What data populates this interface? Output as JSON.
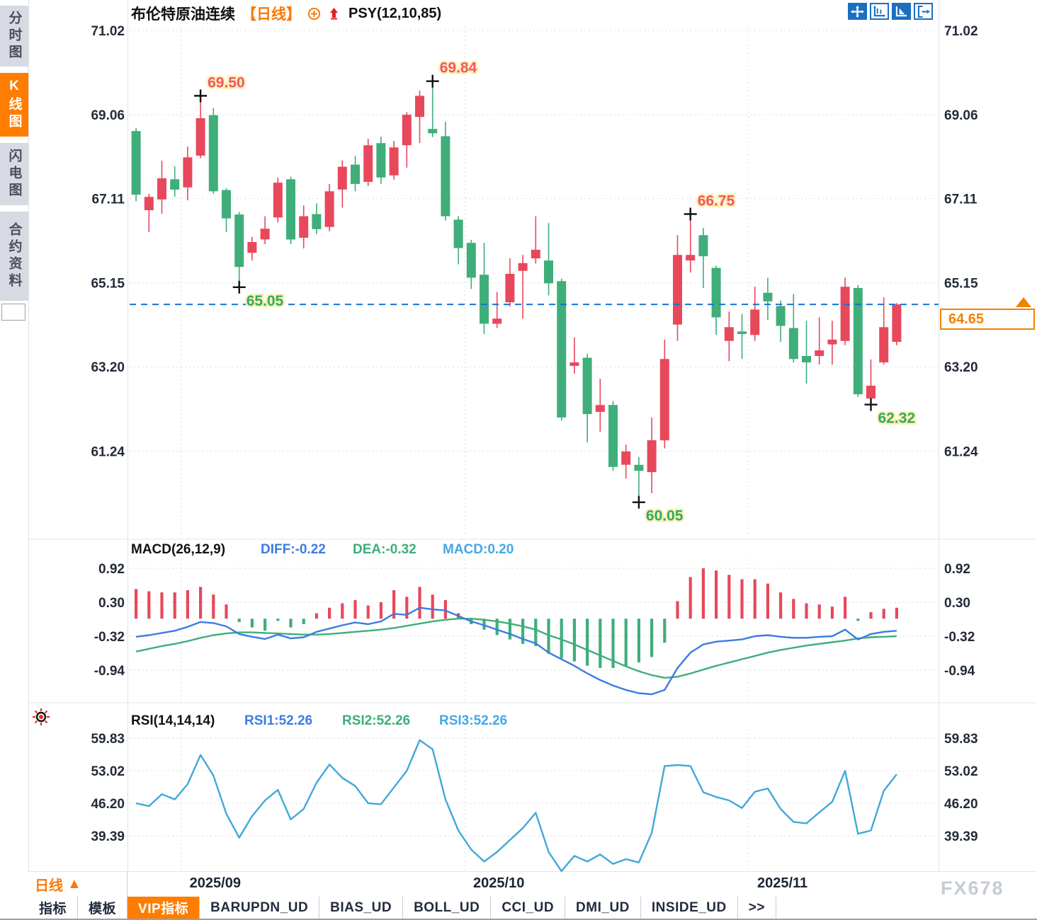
{
  "title_bar": {
    "symbol": "布伦特原油连续",
    "period": "【日线】",
    "overlay_indicator": "PSY(12,10,85)",
    "icons": [
      "circle-plus-icon",
      "red-up-arrow-icon"
    ]
  },
  "sidebar": {
    "items": [
      {
        "label": "分时图",
        "active": false
      },
      {
        "label": "K线图",
        "active": true
      },
      {
        "label": "闪电图",
        "active": false
      },
      {
        "label": "合约资料",
        "active": false
      }
    ]
  },
  "toolbar": {
    "icons": [
      {
        "name": "move-icon",
        "active": true
      },
      {
        "name": "axis-range-icon",
        "active": false
      },
      {
        "name": "axis-play-icon",
        "active": true
      },
      {
        "name": "exit-icon",
        "active": false
      }
    ]
  },
  "colors": {
    "up_candle": "#e8485c",
    "down_candle": "#3fae7a",
    "diff_line": "#3b7ce0",
    "dea_line": "#3fae7a",
    "macd_value": "#45a7e8",
    "rsi_line": "#41a8d8",
    "accent_orange": "#f97b0a",
    "current_price_line": "#1673d2",
    "high_label": "#f25572",
    "low_label": "#2fa96e"
  },
  "price_marker": {
    "value": "64.65"
  },
  "bottom_bar": {
    "period": "日线",
    "arrow": "▲",
    "tabs": [
      {
        "label": "指标",
        "active": false
      },
      {
        "label": "模板",
        "active": false
      },
      {
        "label": "VIP指标",
        "active": true
      },
      {
        "label": "BARUPDN_UD",
        "active": false
      },
      {
        "label": "BIAS_UD",
        "active": false
      },
      {
        "label": "BOLL_UD",
        "active": false
      },
      {
        "label": "CCI_UD",
        "active": false
      },
      {
        "label": "DMI_UD",
        "active": false
      },
      {
        "label": "INSIDE_UD",
        "active": false
      },
      {
        "label": ">>",
        "active": false
      }
    ],
    "watermark": "FX678"
  },
  "chart_data": [
    {
      "type": "candlestick",
      "panel": "main",
      "title": "布伦特原油连续 日线",
      "y_ticks": [
        71.02,
        69.06,
        67.11,
        65.15,
        63.2,
        61.24
      ],
      "x_months": [
        {
          "label": "2025/09",
          "index": 4
        },
        {
          "label": "2025/10",
          "index": 26
        },
        {
          "label": "2025/11",
          "index": 48
        }
      ],
      "current_price": 64.65,
      "ohlc_order": [
        "open",
        "close",
        "high",
        "low"
      ],
      "candles": [
        [
          68.68,
          67.2,
          68.75,
          67.05
        ],
        [
          66.84,
          67.15,
          67.22,
          66.33
        ],
        [
          67.09,
          67.58,
          67.99,
          66.76
        ],
        [
          67.56,
          67.32,
          67.86,
          67.15
        ],
        [
          67.37,
          68.07,
          68.32,
          67.07
        ],
        [
          68.11,
          68.98,
          69.5,
          68.05
        ],
        [
          69.05,
          67.28,
          69.21,
          67.22
        ],
        [
          67.31,
          66.65,
          67.35,
          66.33
        ],
        [
          66.74,
          65.52,
          66.8,
          65.05
        ],
        [
          65.85,
          66.1,
          66.22,
          65.67
        ],
        [
          66.16,
          66.41,
          66.7,
          66.05
        ],
        [
          66.67,
          67.48,
          67.6,
          66.55
        ],
        [
          67.56,
          66.16,
          67.62,
          66.05
        ],
        [
          66.2,
          66.7,
          66.95,
          65.95
        ],
        [
          66.75,
          66.4,
          67.0,
          66.28
        ],
        [
          66.45,
          67.28,
          67.45,
          66.35
        ],
        [
          67.32,
          67.85,
          68.0,
          66.9
        ],
        [
          67.9,
          67.45,
          68.1,
          67.28
        ],
        [
          67.5,
          68.35,
          68.5,
          67.4
        ],
        [
          68.4,
          67.6,
          68.55,
          67.45
        ],
        [
          67.65,
          68.3,
          68.45,
          67.55
        ],
        [
          68.35,
          69.06,
          69.12,
          67.83
        ],
        [
          69.01,
          69.5,
          69.62,
          68.4
        ],
        [
          68.73,
          68.63,
          69.84,
          68.54
        ],
        [
          68.56,
          66.7,
          68.9,
          66.6
        ],
        [
          66.62,
          65.96,
          66.7,
          65.58
        ],
        [
          66.08,
          65.27,
          66.15,
          65.01
        ],
        [
          65.34,
          64.2,
          66.08,
          63.96
        ],
        [
          64.2,
          64.32,
          64.94,
          64.1
        ],
        [
          64.7,
          65.36,
          65.72,
          64.6
        ],
        [
          65.43,
          65.61,
          65.8,
          64.32
        ],
        [
          65.72,
          65.92,
          66.7,
          65.6
        ],
        [
          65.67,
          65.14,
          66.54,
          64.86
        ],
        [
          65.19,
          62.02,
          65.25,
          61.95
        ],
        [
          63.22,
          63.3,
          63.88,
          63.04
        ],
        [
          63.41,
          62.1,
          63.5,
          61.44
        ],
        [
          62.15,
          62.31,
          62.92,
          61.69
        ],
        [
          62.31,
          60.87,
          62.4,
          60.78
        ],
        [
          60.92,
          61.23,
          61.39,
          60.6
        ],
        [
          60.92,
          60.78,
          61.1,
          60.05
        ],
        [
          60.75,
          61.49,
          62.02,
          60.26
        ],
        [
          61.49,
          63.38,
          63.83,
          61.3
        ],
        [
          64.18,
          65.8,
          66.26,
          63.8
        ],
        [
          65.67,
          65.8,
          66.75,
          65.39
        ],
        [
          66.26,
          65.77,
          66.43,
          65.03
        ],
        [
          65.5,
          64.35,
          65.55,
          63.94
        ],
        [
          63.8,
          64.12,
          64.48,
          63.33
        ],
        [
          64.02,
          63.96,
          64.43,
          63.38
        ],
        [
          63.94,
          64.53,
          65.06,
          63.8
        ],
        [
          64.92,
          64.72,
          65.27,
          64.29
        ],
        [
          64.61,
          64.15,
          64.74,
          63.78
        ],
        [
          64.1,
          63.38,
          64.89,
          63.3
        ],
        [
          63.45,
          63.3,
          64.27,
          62.81
        ],
        [
          63.45,
          63.58,
          64.35,
          63.25
        ],
        [
          63.72,
          63.83,
          64.27,
          63.25
        ],
        [
          63.8,
          65.06,
          65.27,
          63.7
        ],
        [
          65.03,
          62.56,
          65.1,
          62.5
        ],
        [
          62.46,
          62.76,
          63.37,
          62.32
        ],
        [
          63.3,
          64.12,
          64.81,
          63.25
        ],
        [
          63.78,
          64.65,
          64.68,
          63.7
        ]
      ],
      "annotations": [
        {
          "text": "69.50",
          "index": 5,
          "price": 69.5,
          "kind": "high"
        },
        {
          "text": "69.84",
          "index": 23,
          "price": 69.84,
          "kind": "high"
        },
        {
          "text": "66.75",
          "index": 43,
          "price": 66.75,
          "kind": "high"
        },
        {
          "text": "65.05",
          "index": 8,
          "price": 65.05,
          "kind": "low"
        },
        {
          "text": "60.05",
          "index": 39,
          "price": 60.05,
          "kind": "low"
        },
        {
          "text": "62.32",
          "index": 57,
          "price": 62.32,
          "kind": "low"
        }
      ]
    },
    {
      "type": "macd",
      "panel": "sub1",
      "title": "MACD(26,12,9)",
      "legend": [
        {
          "label": "DIFF:-0.22",
          "color": "#3b7ce0"
        },
        {
          "label": "DEA:-0.32",
          "color": "#3fae7a"
        },
        {
          "label": "MACD:0.20",
          "color": "#45a7e8"
        }
      ],
      "y_ticks": [
        0.92,
        0.3,
        -0.32,
        -0.94
      ],
      "diff": [
        -0.33,
        -0.3,
        -0.26,
        -0.22,
        -0.15,
        -0.06,
        -0.08,
        -0.14,
        -0.28,
        -0.33,
        -0.37,
        -0.29,
        -0.36,
        -0.34,
        -0.24,
        -0.18,
        -0.12,
        -0.07,
        -0.1,
        -0.05,
        0.09,
        0.07,
        0.2,
        0.17,
        0.15,
        0.05,
        -0.05,
        -0.12,
        -0.2,
        -0.28,
        -0.37,
        -0.45,
        -0.62,
        -0.74,
        -0.86,
        -1.0,
        -1.12,
        -1.22,
        -1.3,
        -1.36,
        -1.38,
        -1.3,
        -0.9,
        -0.62,
        -0.47,
        -0.42,
        -0.4,
        -0.38,
        -0.32,
        -0.3,
        -0.33,
        -0.35,
        -0.35,
        -0.33,
        -0.32,
        -0.2,
        -0.38,
        -0.28,
        -0.24,
        -0.22
      ],
      "dea": [
        -0.6,
        -0.55,
        -0.5,
        -0.46,
        -0.41,
        -0.35,
        -0.3,
        -0.27,
        -0.25,
        -0.25,
        -0.26,
        -0.27,
        -0.28,
        -0.29,
        -0.29,
        -0.28,
        -0.26,
        -0.24,
        -0.22,
        -0.2,
        -0.17,
        -0.13,
        -0.09,
        -0.05,
        -0.02,
        0.0,
        0.0,
        -0.02,
        -0.05,
        -0.09,
        -0.14,
        -0.2,
        -0.3,
        -0.38,
        -0.47,
        -0.57,
        -0.67,
        -0.77,
        -0.87,
        -0.96,
        -1.03,
        -1.08,
        -1.06,
        -1.0,
        -0.93,
        -0.86,
        -0.8,
        -0.74,
        -0.68,
        -0.62,
        -0.57,
        -0.53,
        -0.49,
        -0.46,
        -0.43,
        -0.4,
        -0.36,
        -0.34,
        -0.33,
        -0.32
      ],
      "histogram_rule": "2*(diff-dea)"
    },
    {
      "type": "line",
      "panel": "sub2",
      "title": "RSI(14,14,14)",
      "legend": [
        {
          "label": "RSI1:52.26",
          "color": "#3b7ce0"
        },
        {
          "label": "RSI2:52.26",
          "color": "#3fae7a"
        },
        {
          "label": "RSI3:52.26",
          "color": "#45a7e8"
        }
      ],
      "y_ticks": [
        59.83,
        53.02,
        46.2,
        39.39
      ],
      "values": [
        46.2,
        45.6,
        48.1,
        47.0,
        50.2,
        56.3,
        52.0,
        44.0,
        39.0,
        43.5,
        46.8,
        49.0,
        42.8,
        45.0,
        50.5,
        54.3,
        51.5,
        49.8,
        46.2,
        46.0,
        49.5,
        53.0,
        59.4,
        57.5,
        47.0,
        40.5,
        36.5,
        34.0,
        36.0,
        38.5,
        41.0,
        44.2,
        36.0,
        32.0,
        35.2,
        34.0,
        35.5,
        33.5,
        34.5,
        33.8,
        40.0,
        54.0,
        54.2,
        54.0,
        48.5,
        47.5,
        46.8,
        45.2,
        48.6,
        49.3,
        45.0,
        42.3,
        42.0,
        44.3,
        46.5,
        53.0,
        39.8,
        40.5,
        48.8,
        52.26
      ]
    }
  ]
}
